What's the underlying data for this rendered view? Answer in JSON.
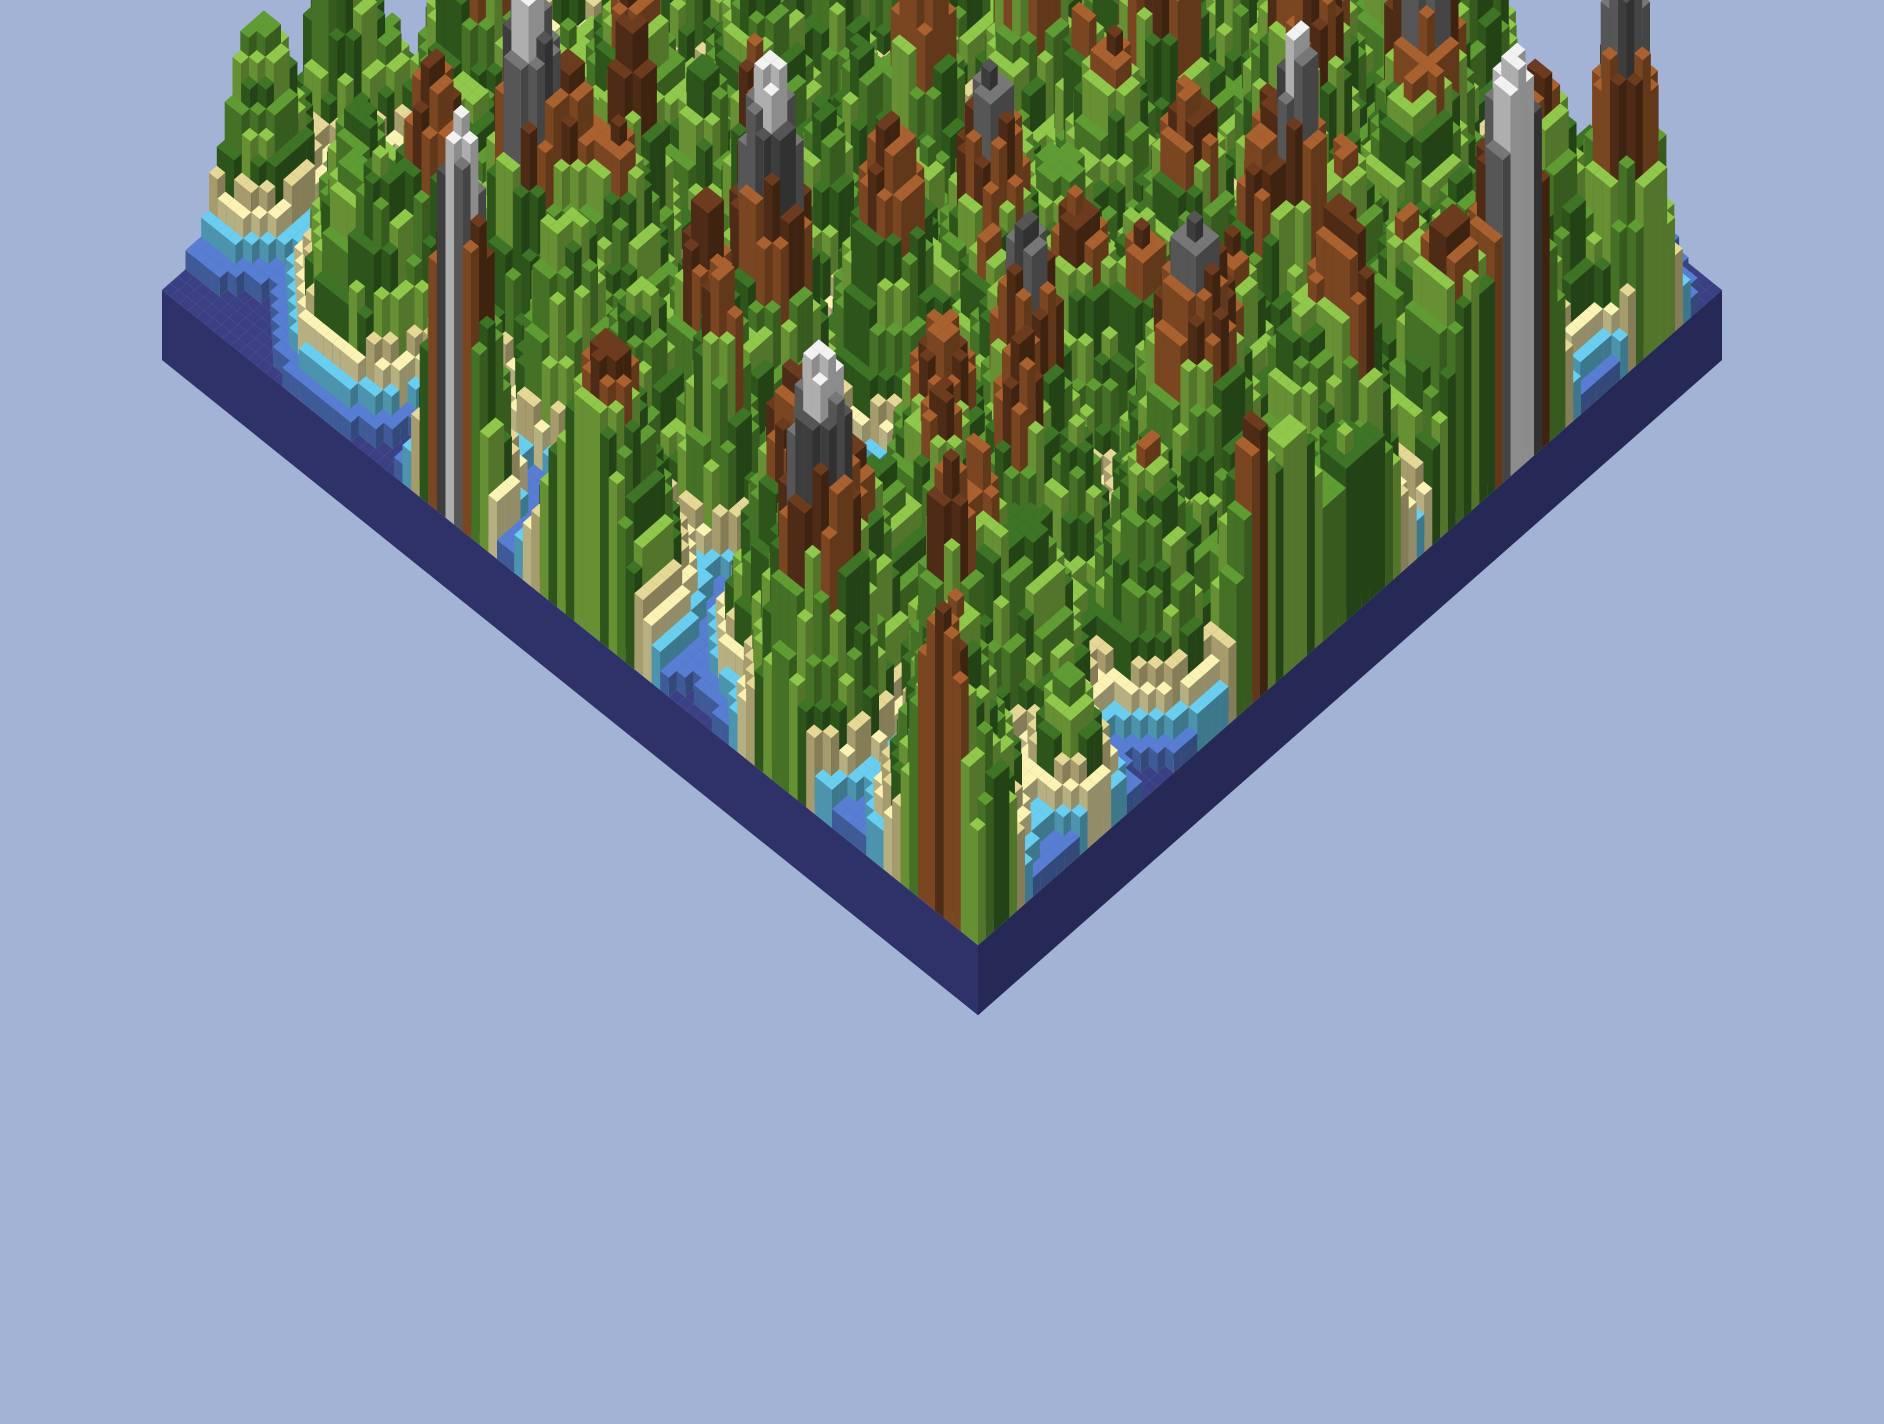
{
  "scene": {
    "kind": "procedural-voxel-terrain",
    "background": "#a2b3d6",
    "palette": {
      "deep_water": "#3b3f83",
      "water": "#577ed2",
      "shallow_water": "#69cef0",
      "sand_light": "#fbf3b4",
      "sand": "#e5d796",
      "grass_light": "#8fc84a",
      "grass": "#5f9d34",
      "forest": "#3d7426",
      "dirt": "#a9612f",
      "dirt_dark": "#6d3c1e",
      "rock": "#777777",
      "rock_dark": "#555555",
      "snow": "#f2f2f2"
    },
    "terrain_bands": [
      "deep_water",
      "water",
      "shallow_water",
      "sand_light",
      "sand",
      "grass_light",
      "grass",
      "forest",
      "dirt",
      "dirt_dark",
      "rock",
      "snow"
    ]
  }
}
